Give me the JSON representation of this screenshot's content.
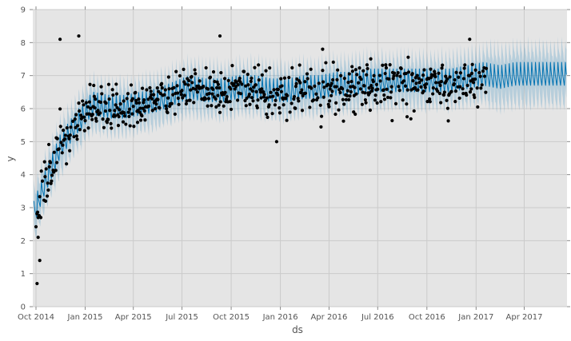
{
  "chart_data": {
    "type": "line",
    "title": "",
    "xlabel": "ds",
    "ylabel": "y",
    "ylim": [
      0,
      9
    ],
    "xlim": [
      "2014-09-25",
      "2017-06-20"
    ],
    "grid": true,
    "legend": null,
    "style": "ggplot",
    "yticks": [
      0,
      1,
      2,
      3,
      4,
      5,
      6,
      7,
      8,
      9
    ],
    "xticks": [
      "Oct 2014",
      "Jan 2015",
      "Apr 2015",
      "Jul 2015",
      "Oct 2015",
      "Jan 2016",
      "Apr 2016",
      "Jul 2016",
      "Oct 2016",
      "Jan 2017",
      "Apr 2017"
    ],
    "series": [
      {
        "name": "yhat (forecast)",
        "kind": "line",
        "color": "#0072B2",
        "monthly_trend": {
          "x": [
            "2014-10",
            "2014-11",
            "2014-12",
            "2015-01",
            "2015-02",
            "2015-03",
            "2015-04",
            "2015-05",
            "2015-06",
            "2015-07",
            "2015-08",
            "2015-09",
            "2015-10",
            "2015-11",
            "2015-12",
            "2016-01",
            "2016-02",
            "2016-03",
            "2016-04",
            "2016-05",
            "2016-06",
            "2016-07",
            "2016-08",
            "2016-09",
            "2016-10",
            "2016-11",
            "2016-12",
            "2017-01",
            "2017-02",
            "2017-03",
            "2017-04",
            "2017-05",
            "2017-06"
          ],
          "y": [
            3.6,
            4.8,
            5.5,
            6.1,
            6.0,
            6.0,
            6.1,
            6.2,
            6.4,
            6.6,
            6.5,
            6.5,
            6.6,
            6.6,
            6.5,
            6.5,
            6.6,
            6.6,
            6.7,
            6.7,
            6.8,
            6.8,
            6.8,
            6.8,
            6.8,
            6.8,
            6.9,
            7.0,
            6.9,
            7.0,
            7.0,
            7.0,
            7.0
          ]
        },
        "weekly_amplitude": 0.55
      },
      {
        "name": "yhat_lower / yhat_upper (uncertainty interval)",
        "kind": "band",
        "color": "#0072B2",
        "opacity": 0.2,
        "half_width": 0.55
      },
      {
        "name": "y (observed)",
        "kind": "scatter",
        "color": "#000000",
        "x_range": [
          "2014-10-01",
          "2017-01-20"
        ],
        "notable_points": [
          {
            "x": "2014-10-03",
            "y": 0.7
          },
          {
            "x": "2014-10-08",
            "y": 1.4
          },
          {
            "x": "2014-10-05",
            "y": 2.1
          },
          {
            "x": "2014-10-10",
            "y": 2.7
          },
          {
            "x": "2014-11-15",
            "y": 8.1
          },
          {
            "x": "2014-12-20",
            "y": 8.2
          },
          {
            "x": "2015-09-10",
            "y": 8.2
          },
          {
            "x": "2015-12-25",
            "y": 5.0
          },
          {
            "x": "2016-03-20",
            "y": 7.8
          },
          {
            "x": "2016-12-20",
            "y": 8.1
          }
        ]
      }
    ]
  },
  "axes": {
    "x_label": "ds",
    "y_label": "y"
  }
}
